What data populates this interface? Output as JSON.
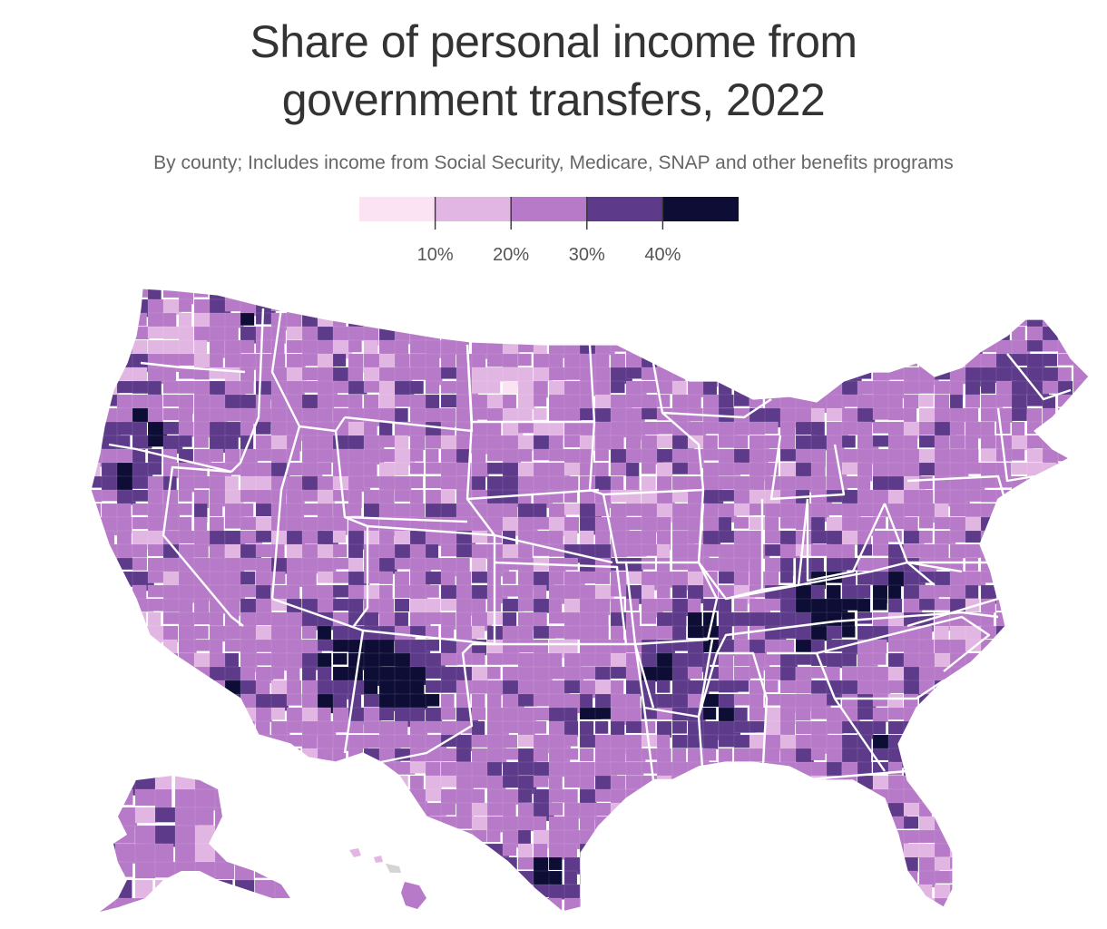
{
  "title_line1": "Share of personal income from",
  "title_line2": "government transfers, 2022",
  "subtitle": "By county; Includes income from Social Security, Medicare, SNAP and other benefits programs",
  "legend": {
    "colors": [
      "#fbe3f4",
      "#e2b6e3",
      "#b77ac8",
      "#5e3b8a",
      "#0e0d35"
    ],
    "thresholds": [
      10,
      20,
      30,
      40
    ],
    "labels": [
      "10%",
      "20%",
      "30%",
      "40%"
    ]
  },
  "map": {
    "type": "choropleth",
    "unit": "county",
    "no_data_color": "#d4d4d4",
    "border_color": "#ffffff"
  }
}
